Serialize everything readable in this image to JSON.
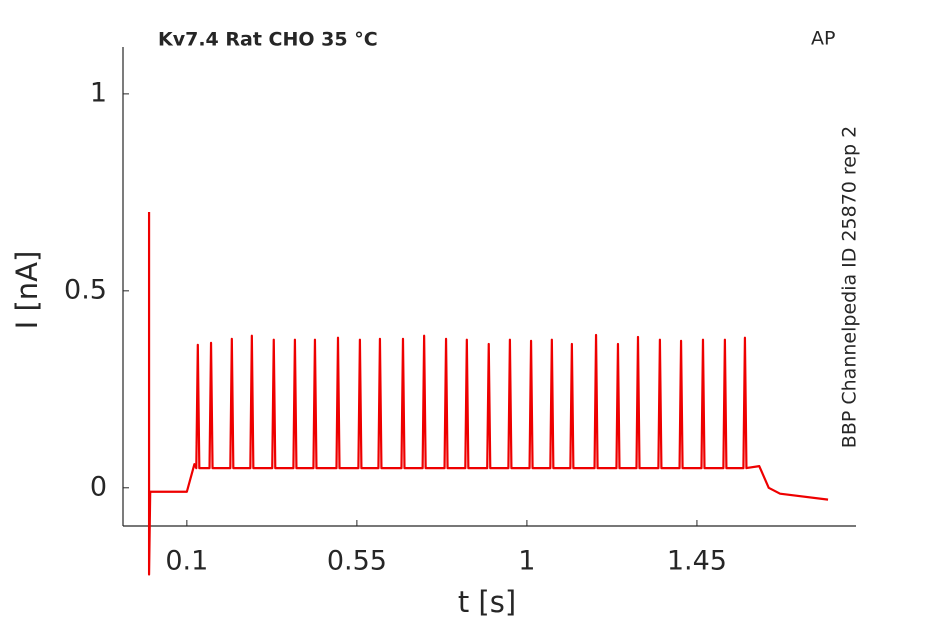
{
  "chart_data": {
    "type": "line",
    "title": "Kv7.4  Rat  CHO  35 °C",
    "annotation": "AP",
    "side_note": "BBP Channelpedia ID 25870 rep 2",
    "xlabel": "t [s]",
    "ylabel": "I [nA]",
    "color": "#ee0000",
    "x": [
      0,
      0,
      0.003,
      0.1,
      0.12,
      0.125,
      0.129,
      0.133,
      0.16,
      0.164,
      0.168,
      0.215,
      0.219,
      0.223,
      0.268,
      0.272,
      0.276,
      0.326,
      0.33,
      0.334,
      0.382,
      0.386,
      0.39,
      0.435,
      0.439,
      0.443,
      0.496,
      0.5,
      0.504,
      0.554,
      0.558,
      0.562,
      0.607,
      0.611,
      0.615,
      0.668,
      0.672,
      0.676,
      0.724,
      0.728,
      0.732,
      0.782,
      0.786,
      0.79,
      0.837,
      0.841,
      0.845,
      0.895,
      0.899,
      0.903,
      0.951,
      0.955,
      0.959,
      1.007,
      1.011,
      1.015,
      1.062,
      1.066,
      1.07,
      1.115,
      1.119,
      1.123,
      1.179,
      1.183,
      1.187,
      1.237,
      1.241,
      1.245,
      1.29,
      1.294,
      1.298,
      1.348,
      1.352,
      1.356,
      1.404,
      1.408,
      1.412,
      1.462,
      1.466,
      1.47,
      1.52,
      1.524,
      1.528,
      1.573,
      1.577,
      1.581,
      1.615,
      1.64,
      1.67,
      1.797
    ],
    "values": [
      0.7,
      -0.22,
      -0.01,
      -0.01,
      0.06,
      0.05,
      0.363,
      0.05,
      0.05,
      0.368,
      0.05,
      0.05,
      0.378,
      0.05,
      0.05,
      0.386,
      0.05,
      0.05,
      0.376,
      0.05,
      0.05,
      0.376,
      0.05,
      0.05,
      0.376,
      0.05,
      0.05,
      0.381,
      0.05,
      0.05,
      0.376,
      0.05,
      0.05,
      0.378,
      0.05,
      0.05,
      0.378,
      0.05,
      0.05,
      0.386,
      0.05,
      0.05,
      0.378,
      0.05,
      0.05,
      0.376,
      0.05,
      0.05,
      0.365,
      0.05,
      0.05,
      0.376,
      0.05,
      0.05,
      0.373,
      0.05,
      0.05,
      0.376,
      0.05,
      0.05,
      0.365,
      0.05,
      0.05,
      0.388,
      0.05,
      0.05,
      0.365,
      0.05,
      0.05,
      0.383,
      0.05,
      0.05,
      0.376,
      0.05,
      0.05,
      0.373,
      0.05,
      0.05,
      0.376,
      0.05,
      0.05,
      0.376,
      0.05,
      0.05,
      0.381,
      0.05,
      0.055,
      0,
      -0.015,
      -0.03
    ],
    "xlim": [
      -0.069,
      1.871
    ],
    "ylim": [
      -0.097,
      1.119
    ],
    "xticks": [
      0.1,
      0.55,
      1,
      1.45
    ],
    "yticks": [
      0,
      0.5,
      1
    ]
  }
}
